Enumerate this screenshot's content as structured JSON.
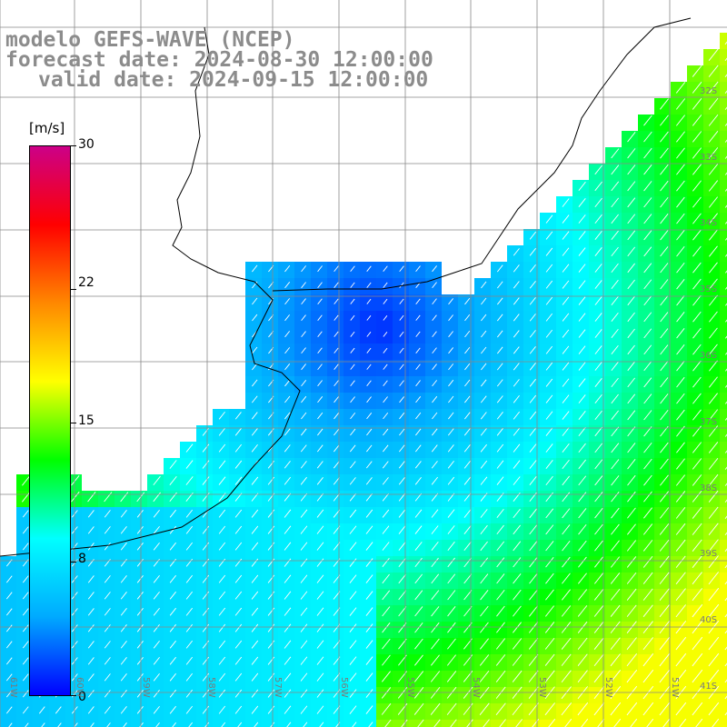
{
  "title": {
    "line1": "modelo GEFS-WAVE (NCEP)",
    "line2": "forecast date: 2024-08-30 12:00:00",
    "line3": "valid date: 2024-09-15 12:00:00"
  },
  "colorbar": {
    "unit": "[m/s]",
    "ticks": [
      "30",
      "22",
      "15",
      "8",
      "0"
    ],
    "tick_values": [
      30,
      22,
      15,
      8,
      0
    ],
    "range": [
      0,
      30
    ],
    "colors": [
      "#0000ff",
      "#00aaff",
      "#00ffff",
      "#00ff00",
      "#ffff00",
      "#ff8800",
      "#ff0000",
      "#cc0088"
    ]
  },
  "grid": {
    "lat_labels": [
      "32S",
      "33S",
      "34S",
      "35S",
      "36S",
      "37S",
      "38S",
      "39S",
      "40S",
      "41S"
    ],
    "lon_labels": [
      "61W",
      "60W",
      "59W",
      "58W",
      "57W",
      "56W",
      "55W",
      "54W",
      "53W",
      "52W",
      "51W"
    ],
    "line_color": "#888888"
  },
  "map": {
    "land_color": "#ffffff",
    "coast_color": "#000000",
    "arrow_color": "#ffffff",
    "wind_direction_general": "from southwest",
    "speed_pattern": "low near the estuary, increasing toward the southeast"
  }
}
